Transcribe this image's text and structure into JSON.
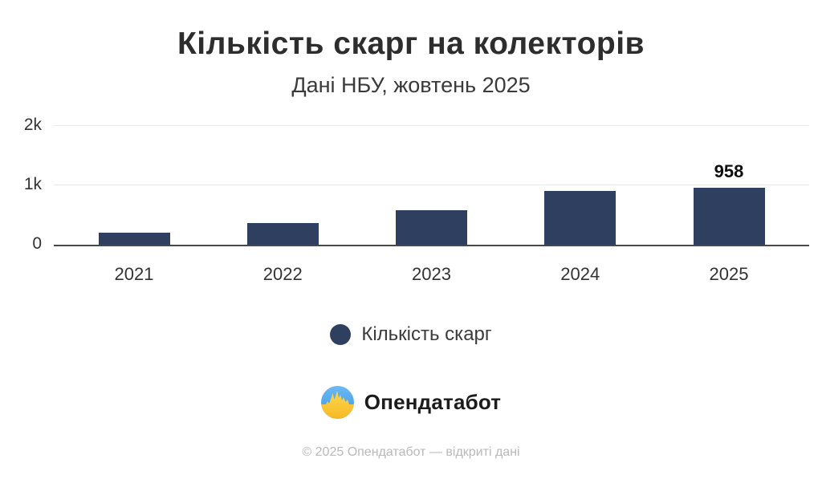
{
  "title": "Кількість скарг на колекторів",
  "subtitle": "Дані НБУ, жовтень 2025",
  "chart_data": {
    "type": "bar",
    "categories": [
      "2021",
      "2022",
      "2023",
      "2024",
      "2025"
    ],
    "values": [
      200,
      360,
      580,
      910,
      958
    ],
    "value_labels": [
      "",
      "",
      "",
      "",
      "958"
    ],
    "title": "Кількість скарг на колекторів",
    "subtitle": "Дані НБУ, жовтень 2025",
    "xlabel": "",
    "ylabel": "",
    "ylim": [
      0,
      2000
    ],
    "yticks": [
      "0",
      "1k",
      "2k"
    ],
    "grid": "horizontal-at-1k-and-2k",
    "bar_color": "#2F3F5F",
    "legend": {
      "label": "Кількість скарг",
      "position": "bottom",
      "marker": "circle",
      "marker_color": "#2F3F5F"
    }
  },
  "branding": {
    "logo_text": "Опендатабот",
    "logo_icon": "opendatabot-flag-pulse-icon",
    "icon_colors": {
      "blue": "#4da0e8",
      "yellow": "#ffd24a"
    }
  },
  "footer": {
    "copyright": "© 2025 Опендатабот — відкриті дані"
  },
  "colors": {
    "background": "#ffffff",
    "bar": "#2F3F5F",
    "title_text": "#2d2d2d",
    "axis_text": "#333333",
    "gridline": "#e8e8e8",
    "baseline": "#484848",
    "footer_text": "#b9b9b9"
  }
}
